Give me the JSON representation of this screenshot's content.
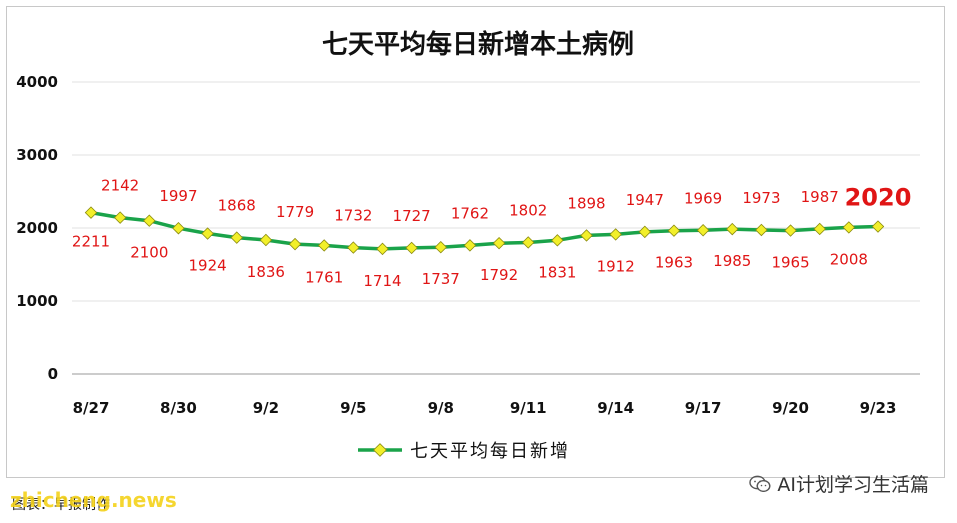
{
  "chart_data": {
    "type": "line",
    "title": "七天平均每日新增本土病例",
    "xlabel": "",
    "ylabel": "",
    "ylim": [
      0,
      4000
    ],
    "yticks": [
      "0",
      "1000",
      "2000",
      "3000",
      "4000"
    ],
    "grid": true,
    "legend_position": "bottom",
    "x": [
      "8/27",
      "8/28",
      "8/29",
      "8/30",
      "8/31",
      "9/1",
      "9/2",
      "9/3",
      "9/4",
      "9/5",
      "9/6",
      "9/7",
      "9/8",
      "9/9",
      "9/10",
      "9/11",
      "9/12",
      "9/13",
      "9/14",
      "9/15",
      "9/16",
      "9/17",
      "9/18",
      "9/19",
      "9/20",
      "9/21",
      "9/22",
      "9/23"
    ],
    "xtick_labels": [
      "8/27",
      "8/30",
      "9/2",
      "9/5",
      "9/8",
      "9/11",
      "9/14",
      "9/17",
      "9/20",
      "9/23"
    ],
    "series": [
      {
        "name": "七天平均每日新增",
        "color": "#1aa34a",
        "marker_color": "#f2ef2a",
        "values": [
          2211,
          2142,
          2100,
          1997,
          1924,
          1868,
          1836,
          1779,
          1761,
          1732,
          1714,
          1727,
          1737,
          1762,
          1792,
          1802,
          1831,
          1898,
          1912,
          1947,
          1963,
          1969,
          1985,
          1973,
          1965,
          1987,
          2008,
          2020
        ]
      }
    ]
  },
  "footer": {
    "credit": "图表：早报制作",
    "watermark": "zhicheng.news",
    "account": "AI计划学习生活篇"
  }
}
